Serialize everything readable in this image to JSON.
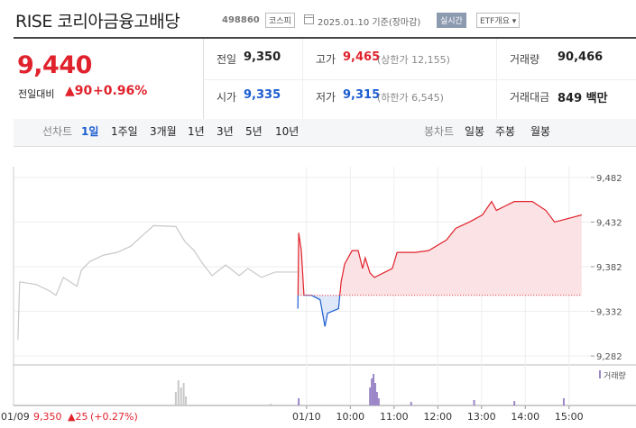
{
  "header": {
    "title": "RISE 코리아금융고배당",
    "code": "498860",
    "market": "코스피",
    "date": "2025.01.10 기준(장마감)",
    "realtime": "실시간",
    "etf": "ETF개요 ▾"
  },
  "price": {
    "current": "9,440",
    "change_title": "전일대비",
    "change": "▲90",
    "rate": "+0.96%"
  },
  "info": [
    [
      {
        "label": "전일",
        "value": "9,350"
      },
      {
        "label": "고가",
        "value": "9,465",
        "extra": "(상한가 12,155)"
      },
      {
        "label": "거래량",
        "value": "90,466"
      }
    ],
    [
      {
        "label": "시가",
        "value": "9,335"
      },
      {
        "label": "저가",
        "value": "9,315",
        "extra": "(하한가 6,545)"
      },
      {
        "label": "거래대금",
        "value": "849 백만"
      }
    ]
  ],
  "tabs": {
    "line_label": "선차트",
    "line_items": [
      "1일",
      "1주일",
      "3개월",
      "1년",
      "3년",
      "5년",
      "10년"
    ],
    "candle_label": "봉차트",
    "candle_items": [
      "일봉",
      "주봉",
      "월봉"
    ]
  },
  "chart_data": {
    "type": "line",
    "xlim": [
      -6.7,
      6.5
    ],
    "ylim": [
      9272,
      9494
    ],
    "yticks": [
      {
        "value": 9482,
        "label": "9,482"
      },
      {
        "value": 9432,
        "label": "9,432"
      },
      {
        "value": 9382,
        "label": "9,382"
      },
      {
        "value": 9332,
        "label": "9,332"
      },
      {
        "value": 9282,
        "label": "9,282"
      }
    ],
    "xticks": [
      {
        "value": 0,
        "label": "01/10"
      },
      {
        "value": 1,
        "label": "10:00"
      },
      {
        "value": 2,
        "label": "11:00"
      },
      {
        "value": 3,
        "label": "12:00"
      },
      {
        "value": 4,
        "label": "13:00"
      },
      {
        "value": 5,
        "label": "14:00"
      },
      {
        "value": 6,
        "label": "15:00"
      }
    ],
    "grid": true,
    "baseline": 9350,
    "series": [
      {
        "color": "#c8c8c8",
        "x": [
          -6.6,
          -6.56,
          -6.18,
          -5.88,
          -5.73,
          -5.56,
          -5.25,
          -5.15,
          -4.95,
          -4.64,
          -4.33,
          -4.02,
          -3.75,
          -3.5,
          -2.99,
          -2.78,
          -2.57,
          -2.37,
          -2.16,
          -1.85,
          -1.54,
          -1.34,
          -1.03,
          -0.72,
          -0.2
        ],
        "values": [
          9300,
          9365,
          9362,
          9355,
          9350,
          9370,
          9360,
          9378,
          9388,
          9395,
          9398,
          9405,
          9417,
          9428,
          9427,
          9410,
          9400,
          9385,
          9372,
          9384,
          9372,
          9380,
          9370,
          9376,
          9376
        ]
      },
      {
        "color": "#e0222c",
        "below_color": "#1b5dd0",
        "fill": "#fbe3e5",
        "below_fill": "#dfe8f8",
        "x": [
          -0.2,
          -0.18,
          -0.12,
          -0.06,
          0.11,
          0.31,
          0.42,
          0.48,
          0.73,
          0.79,
          0.87,
          1.04,
          1.18,
          1.28,
          1.34,
          1.45,
          1.55,
          1.96,
          2.07,
          2.48,
          2.79,
          3.2,
          3.41,
          3.72,
          4.02,
          4.23,
          4.34,
          4.54,
          4.75,
          5.16,
          5.47,
          5.67,
          6.29
        ],
        "values": [
          9335,
          9420,
          9400,
          9350,
          9350,
          9345,
          9315,
          9330,
          9335,
          9365,
          9385,
          9400,
          9400,
          9380,
          9392,
          9375,
          9370,
          9380,
          9398,
          9398,
          9400,
          9412,
          9425,
          9432,
          9440,
          9455,
          9445,
          9450,
          9455,
          9455,
          9445,
          9432,
          9440
        ]
      }
    ],
    "volume": {
      "label": "거래량",
      "ylim": [
        0,
        10000
      ],
      "series": [
        {
          "color": "#c8c8c8",
          "x": [
            -2.99,
            -2.93,
            -2.87,
            -2.81,
            -2.76,
            -0.82
          ],
          "values": [
            3750,
            7000,
            5000,
            6250,
            2500,
            500
          ]
        },
        {
          "color": "#9b86c8",
          "x": [
            -0.18,
            1.45,
            1.49,
            1.53,
            1.57,
            1.61,
            1.65,
            2.39,
            3.83,
            4.75,
            5.88
          ],
          "values": [
            2000,
            5000,
            7500,
            8750,
            6250,
            3750,
            2000,
            1000,
            1500,
            1250,
            2000
          ]
        }
      ]
    },
    "tooltip": {
      "date": "01/09",
      "price": "9,350",
      "change": "▲25",
      "rate": "(+0.27%)"
    }
  }
}
